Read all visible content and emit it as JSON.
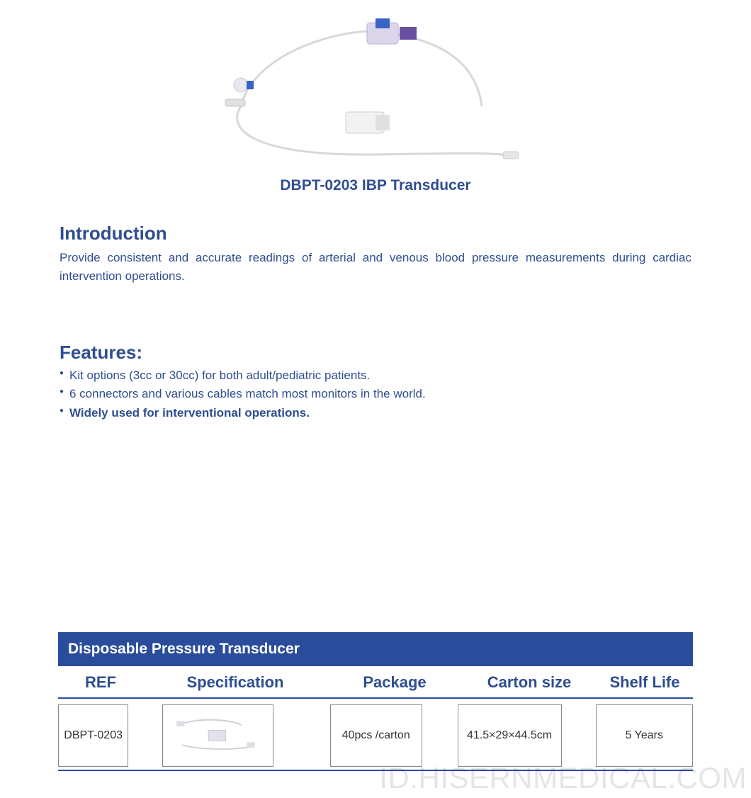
{
  "colors": {
    "brand": "#2f4e8f",
    "title_bar": "#2a4d9b",
    "bullet": "#2f4e8f",
    "table_rule": "#2a4d9b",
    "text": "#333333",
    "watermark": "rgba(0,0,0,0.10)"
  },
  "product": {
    "title": "DBPT-0203 IBP Transducer"
  },
  "intro": {
    "heading": "Introduction",
    "body": "Provide consistent and accurate readings of arterial and venous blood pressure measurements during cardiac intervention operations."
  },
  "features": {
    "heading": "Features:",
    "items": [
      {
        "text": "Kit options (3cc or 30cc) for both adult/pediatric patients.",
        "bold": false
      },
      {
        "text": "6 connectors and various cables match most monitors in the world.",
        "bold": false
      },
      {
        "text": "Widely used for interventional operations.",
        "bold": true
      }
    ]
  },
  "spec_table": {
    "title": "Disposable Pressure Transducer",
    "columns": [
      "REF",
      "Specification",
      "Package",
      "Carton  size",
      "Shelf Life"
    ],
    "row": {
      "ref": "DBPT-0203",
      "package": "40pcs /carton",
      "carton_size": "41.5×29×44.5cm",
      "shelf_life": "5 Years"
    }
  },
  "watermark": "ID.HISERNMEDICAL.COM"
}
